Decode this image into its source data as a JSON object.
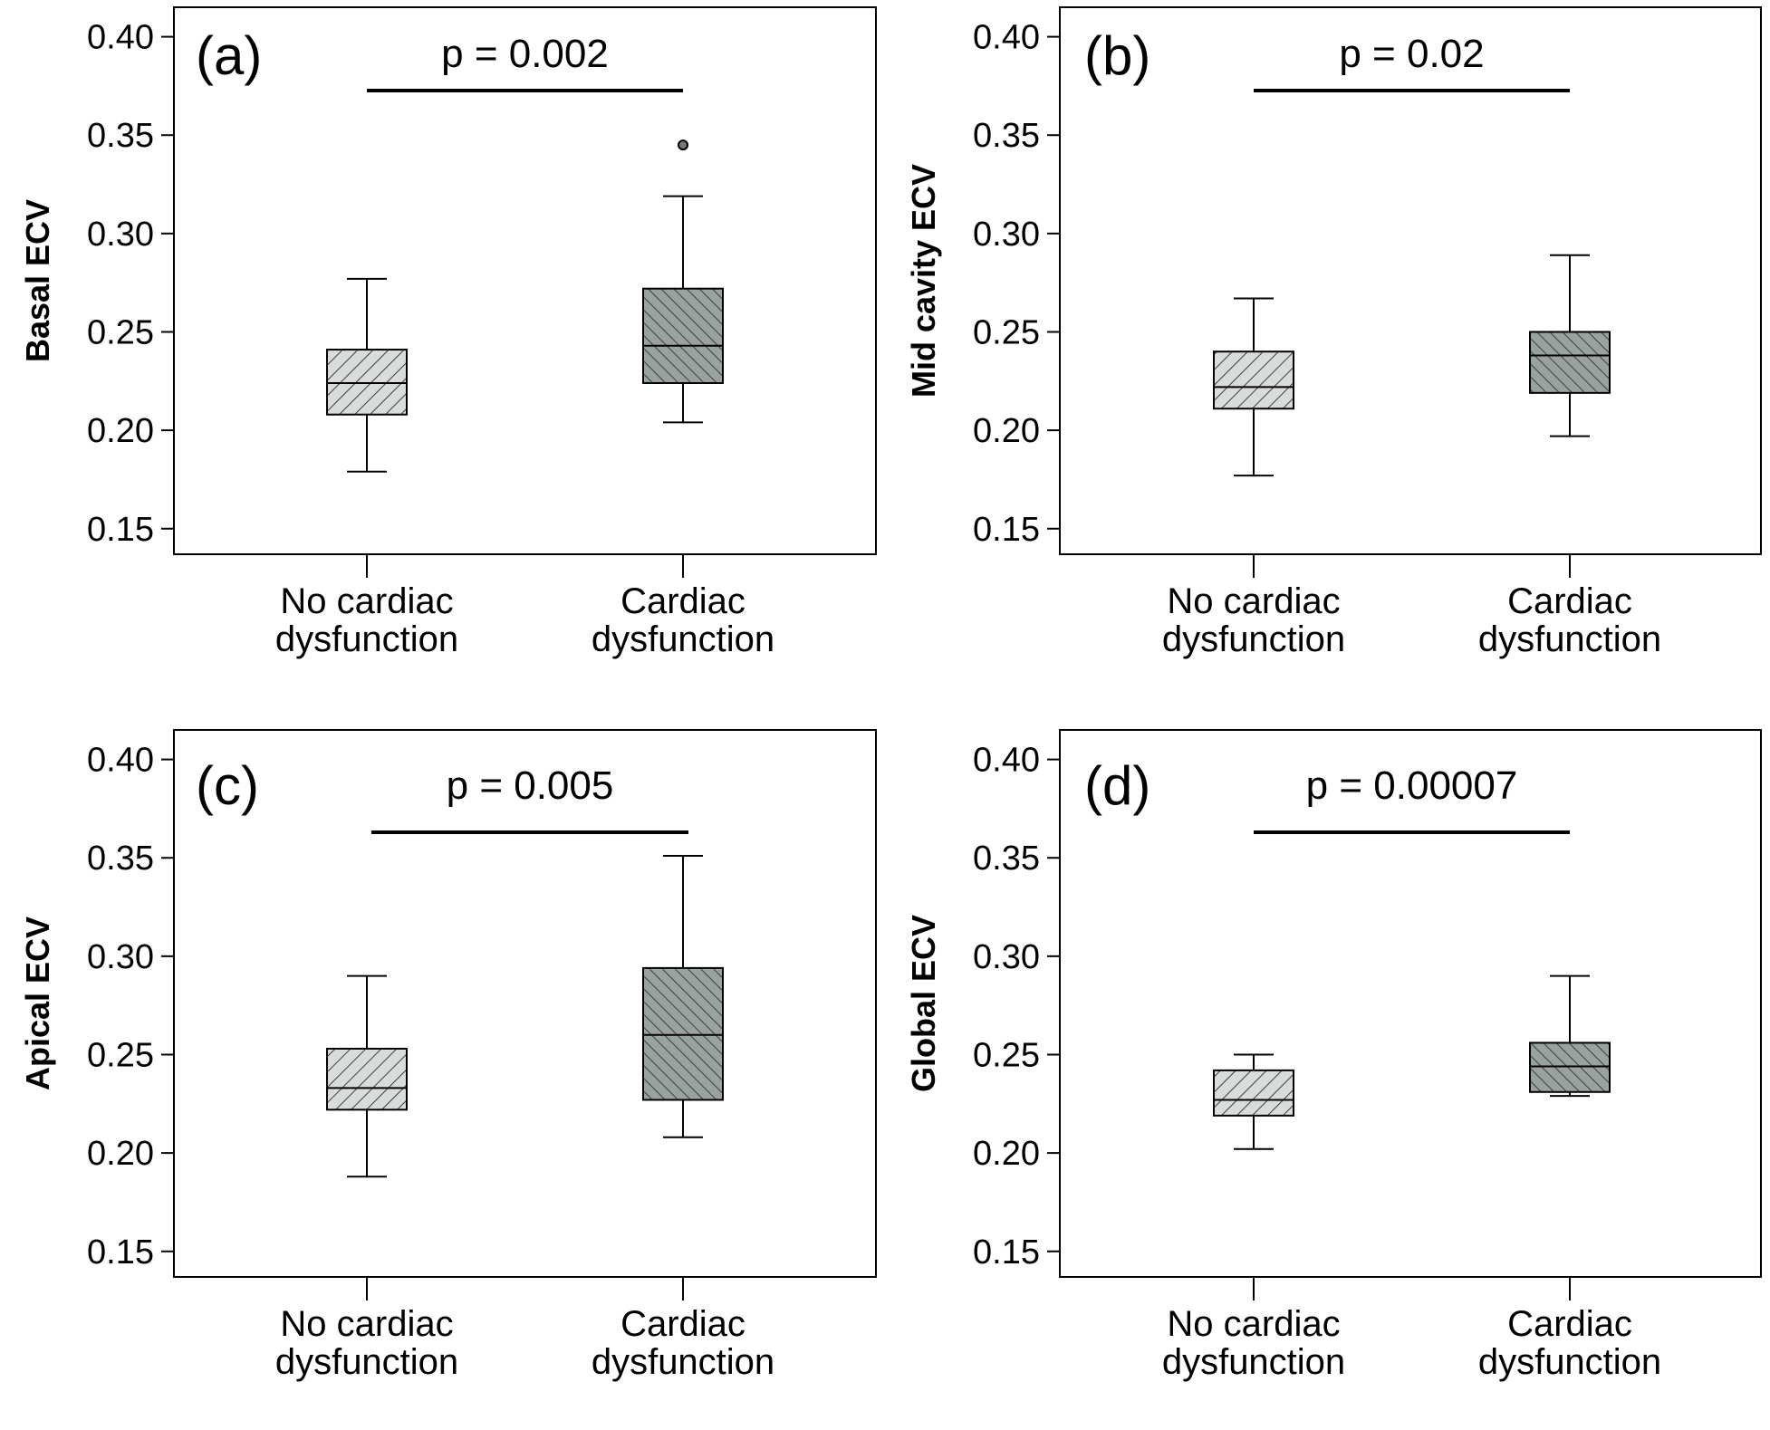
{
  "colors": {
    "no_dysfunction_fill": "#d9dcd9",
    "dysfunction_fill": "#9aa29f",
    "hatch": "#3a3f3d",
    "line": "#000000"
  },
  "chart_data": [
    {
      "type": "box",
      "panel_label": "(a)",
      "ylabel": "Basal ECV",
      "p_value": "p = 0.002",
      "ylim": [
        0.137,
        0.415
      ],
      "yticks": [
        0.15,
        0.2,
        0.25,
        0.3,
        0.35,
        0.4
      ],
      "ytick_labels": [
        "0.15",
        "0.20",
        "0.25",
        "0.30",
        "0.35",
        "0.40"
      ],
      "categories": [
        {
          "line1": "No cardiac",
          "line2": "dysfunction"
        },
        {
          "line1": "Cardiac",
          "line2": "dysfunction"
        }
      ],
      "boxes": [
        {
          "min": 0.179,
          "q1": 0.208,
          "median": 0.224,
          "q3": 0.241,
          "max": 0.277,
          "outliers": []
        },
        {
          "min": 0.204,
          "q1": 0.224,
          "median": 0.243,
          "q3": 0.272,
          "max": 0.319,
          "outliers": [
            0.345
          ]
        }
      ]
    },
    {
      "type": "box",
      "panel_label": "(b)",
      "ylabel": "Mid cavity ECV",
      "p_value": "p = 0.02",
      "ylim": [
        0.137,
        0.415
      ],
      "yticks": [
        0.15,
        0.2,
        0.25,
        0.3,
        0.35,
        0.4
      ],
      "ytick_labels": [
        "0.15",
        "0.20",
        "0.25",
        "0.30",
        "0.35",
        "0.40"
      ],
      "categories": [
        {
          "line1": "No cardiac",
          "line2": "dysfunction"
        },
        {
          "line1": "Cardiac",
          "line2": "dysfunction"
        }
      ],
      "boxes": [
        {
          "min": 0.177,
          "q1": 0.211,
          "median": 0.222,
          "q3": 0.24,
          "max": 0.267,
          "outliers": []
        },
        {
          "min": 0.197,
          "q1": 0.219,
          "median": 0.238,
          "q3": 0.25,
          "max": 0.289,
          "outliers": []
        }
      ]
    },
    {
      "type": "box",
      "panel_label": "(c)",
      "ylabel": "Apical ECV",
      "p_value": "p = 0.005",
      "ylim": [
        0.137,
        0.415
      ],
      "yticks": [
        0.15,
        0.2,
        0.25,
        0.3,
        0.35,
        0.4
      ],
      "ytick_labels": [
        "0.15",
        "0.20",
        "0.25",
        "0.30",
        "0.35",
        "0.40"
      ],
      "categories": [
        {
          "line1": "No cardiac",
          "line2": "dysfunction"
        },
        {
          "line1": "Cardiac",
          "line2": "dysfunction"
        }
      ],
      "boxes": [
        {
          "min": 0.188,
          "q1": 0.222,
          "median": 0.233,
          "q3": 0.253,
          "max": 0.29,
          "outliers": []
        },
        {
          "min": 0.208,
          "q1": 0.227,
          "median": 0.26,
          "q3": 0.294,
          "max": 0.351,
          "outliers": []
        }
      ]
    },
    {
      "type": "box",
      "panel_label": "(d)",
      "ylabel": "Global ECV",
      "p_value": "p = 0.00007",
      "ylim": [
        0.137,
        0.415
      ],
      "yticks": [
        0.15,
        0.2,
        0.25,
        0.3,
        0.35,
        0.4
      ],
      "ytick_labels": [
        "0.15",
        "0.20",
        "0.25",
        "0.30",
        "0.35",
        "0.40"
      ],
      "categories": [
        {
          "line1": "No cardiac",
          "line2": "dysfunction"
        },
        {
          "line1": "Cardiac",
          "line2": "dysfunction"
        }
      ],
      "boxes": [
        {
          "min": 0.202,
          "q1": 0.219,
          "median": 0.227,
          "q3": 0.242,
          "max": 0.25,
          "outliers": []
        },
        {
          "min": 0.229,
          "q1": 0.231,
          "median": 0.244,
          "q3": 0.256,
          "max": 0.29,
          "outliers": []
        }
      ]
    }
  ]
}
